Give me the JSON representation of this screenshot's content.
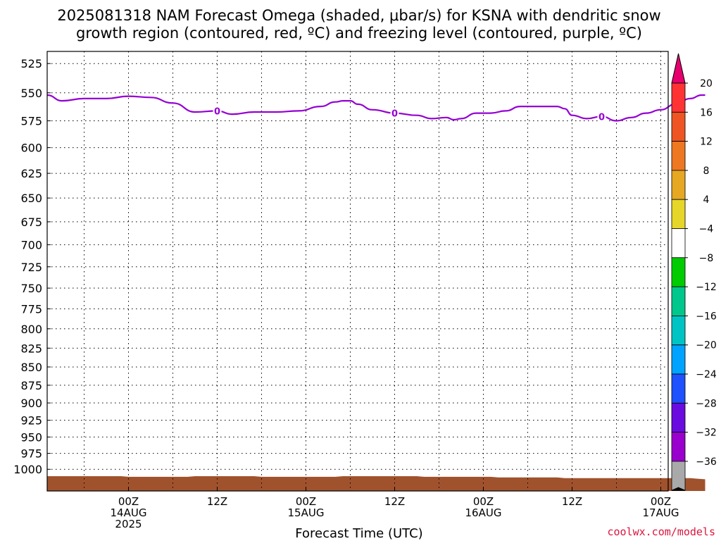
{
  "chart_data": {
    "type": "time-height",
    "title_lines": [
      "2025081318 NAM Forecast Omega (shaded, μbar/s) for KSNA with dendritic snow",
      "growth region (contoured, red, ºC) and freezing level (contoured, purple, ºC)"
    ],
    "xlabel": "Forecast Time (UTC)",
    "credit": "coolwx.com/models",
    "y_axis": {
      "scale": "log-pressure",
      "ylim": [
        1035,
        515
      ],
      "ticks": [
        525,
        550,
        575,
        600,
        625,
        650,
        675,
        700,
        725,
        750,
        775,
        800,
        825,
        850,
        875,
        900,
        925,
        950,
        975,
        1000
      ]
    },
    "x_axis": {
      "xlim_hours": [
        -5,
        79
      ],
      "ticks": [
        {
          "hour": 6,
          "lines": [
            "00Z",
            "14AUG",
            "2025"
          ]
        },
        {
          "hour": 18,
          "lines": [
            "12Z"
          ]
        },
        {
          "hour": 30,
          "lines": [
            "00Z",
            "15AUG"
          ]
        },
        {
          "hour": 42,
          "lines": [
            "12Z"
          ]
        },
        {
          "hour": 54,
          "lines": [
            "00Z",
            "16AUG"
          ]
        },
        {
          "hour": 66,
          "lines": [
            "12Z"
          ]
        },
        {
          "hour": 78,
          "lines": [
            "00Z",
            "17AUG"
          ]
        }
      ]
    },
    "grid": true,
    "freezing_level": {
      "color": "#9400d3",
      "label_value": "0",
      "label_hours": [
        18,
        42,
        70
      ],
      "points": [
        [
          -5,
          552
        ],
        [
          -3,
          557
        ],
        [
          0,
          555
        ],
        [
          3,
          555
        ],
        [
          6,
          553
        ],
        [
          9,
          554
        ],
        [
          12,
          559
        ],
        [
          15,
          567
        ],
        [
          18,
          566
        ],
        [
          20,
          569
        ],
        [
          23,
          567
        ],
        [
          26,
          567
        ],
        [
          29,
          566
        ],
        [
          32,
          562
        ],
        [
          34,
          558
        ],
        [
          35,
          557
        ],
        [
          36,
          557
        ],
        [
          37,
          560
        ],
        [
          39,
          565
        ],
        [
          42,
          568
        ],
        [
          45,
          570
        ],
        [
          47,
          573
        ],
        [
          49,
          572
        ],
        [
          50,
          574
        ],
        [
          51,
          573
        ],
        [
          53,
          568
        ],
        [
          55,
          568
        ],
        [
          57,
          566
        ],
        [
          59,
          562
        ],
        [
          62,
          562
        ],
        [
          64,
          562
        ],
        [
          65,
          564
        ],
        [
          66,
          570
        ],
        [
          68,
          573
        ],
        [
          70,
          571
        ],
        [
          72,
          575
        ],
        [
          74,
          572
        ],
        [
          76,
          568
        ],
        [
          78,
          565
        ],
        [
          80,
          560
        ],
        [
          82,
          555
        ],
        [
          83.5,
          552
        ],
        [
          84,
          552
        ]
      ]
    },
    "terrain": {
      "color": "#a0522d",
      "surface_pressure": [
        [
          -5,
          1011
        ],
        [
          2,
          1011
        ],
        [
          5,
          1011
        ],
        [
          6,
          1012
        ],
        [
          14,
          1012
        ],
        [
          15,
          1011
        ],
        [
          23,
          1011
        ],
        [
          24,
          1012
        ],
        [
          34,
          1012
        ],
        [
          35,
          1011
        ],
        [
          45,
          1011
        ],
        [
          46,
          1012
        ],
        [
          55,
          1012
        ],
        [
          56,
          1013
        ],
        [
          64,
          1013
        ],
        [
          65,
          1014
        ],
        [
          75,
          1014
        ],
        [
          82,
          1014
        ],
        [
          83,
          1015
        ],
        [
          84,
          1016
        ]
      ]
    },
    "colorbar": {
      "units": "μbar/s",
      "levels": [
        -36,
        -32,
        -28,
        -24,
        -20,
        -16,
        -12,
        -8,
        -4,
        4,
        8,
        12,
        16,
        20
      ],
      "tick_labels": [
        "20",
        "16",
        "12",
        "8",
        "4",
        "−4",
        "−8",
        "−12",
        "−16",
        "−20",
        "−24",
        "−28",
        "−32",
        "−36"
      ],
      "colors_top_to_bottom": [
        "#ff3333",
        "#ee5522",
        "#ee7722",
        "#e6a822",
        "#e6d629",
        "#ffffff",
        "#00cc00",
        "#00c78c",
        "#00c4c4",
        "#00a3ff",
        "#1f51ff",
        "#6a0ce0",
        "#9a00cd",
        "#a9a9a9"
      ],
      "top_arrow_color": "#e6006e",
      "bottom_arrow_color": "#000000"
    }
  }
}
